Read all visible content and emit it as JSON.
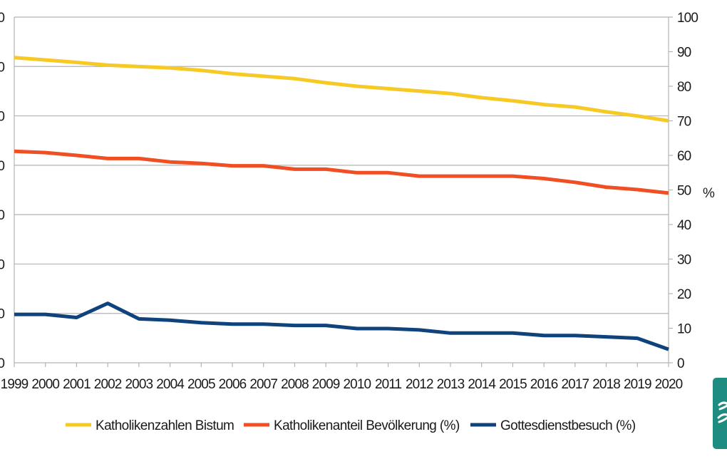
{
  "chart_data": {
    "type": "line",
    "categories": [
      "1999",
      "2000",
      "2001",
      "2002",
      "2003",
      "2004",
      "2005",
      "2006",
      "2007",
      "2008",
      "2009",
      "2010",
      "2011",
      "2012",
      "2013",
      "2014",
      "2015",
      "2016",
      "2017",
      "2018",
      "2019",
      "2020"
    ],
    "y_right": {
      "label": "%",
      "range": [
        0,
        100
      ],
      "ticks": [
        0,
        10,
        20,
        30,
        40,
        50,
        60,
        70,
        80,
        90,
        100
      ]
    },
    "y_left": {
      "ticks": [
        "0",
        "0",
        "0",
        "0",
        "0",
        "0",
        "0",
        "0"
      ]
    },
    "series": [
      {
        "name": "Katholikenzahlen Bistum",
        "color": "#f7c925",
        "axis": "right",
        "values": [
          88.3,
          87.6,
          86.9,
          86.1,
          85.7,
          85.3,
          84.6,
          83.6,
          82.9,
          82.2,
          81.0,
          80.0,
          79.3,
          78.6,
          77.9,
          76.7,
          75.8,
          74.7,
          74.0,
          72.6,
          71.4,
          70.0
        ]
      },
      {
        "name": "Katholikenanteil Bevölkerung (%)",
        "color": "#f04e23",
        "axis": "right",
        "values": [
          61.2,
          60.8,
          60.0,
          59.1,
          59.1,
          58.1,
          57.7,
          57.0,
          57.0,
          56.0,
          56.0,
          55.0,
          55.0,
          54.0,
          54.0,
          54.0,
          54.0,
          53.3,
          52.2,
          50.8,
          50.1,
          49.1
        ]
      },
      {
        "name": "Gottesdienstbesuch (%)",
        "color": "#10427c",
        "axis": "right",
        "values": [
          14.0,
          14.0,
          13.1,
          17.2,
          12.7,
          12.3,
          11.6,
          11.2,
          11.2,
          10.8,
          10.8,
          9.9,
          9.9,
          9.5,
          8.6,
          8.6,
          8.6,
          7.9,
          7.9,
          7.5,
          7.1,
          3.9
        ]
      }
    ],
    "grid": true,
    "legend_position": "bottom"
  }
}
